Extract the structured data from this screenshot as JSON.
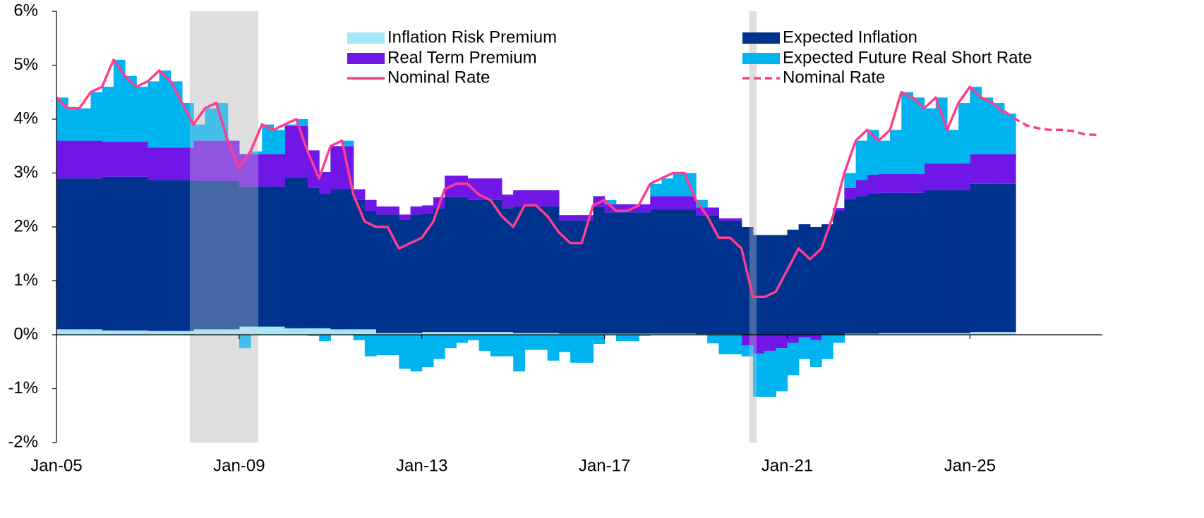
{
  "chart_data": {
    "type": "stacked-area",
    "x": [
      2005,
      2005.25,
      2005.5,
      2005.75,
      2006,
      2006.25,
      2006.5,
      2006.75,
      2007,
      2007.25,
      2007.5,
      2007.75,
      2008,
      2008.25,
      2008.5,
      2008.75,
      2009,
      2009.25,
      2009.5,
      2009.75,
      2010,
      2010.25,
      2010.5,
      2010.75,
      2011,
      2011.25,
      2011.5,
      2011.75,
      2012,
      2012.25,
      2012.5,
      2012.75,
      2013,
      2013.25,
      2013.5,
      2013.75,
      2014,
      2014.25,
      2014.5,
      2014.75,
      2015,
      2015.25,
      2015.5,
      2015.75,
      2016,
      2016.25,
      2016.5,
      2016.75,
      2017,
      2017.25,
      2017.5,
      2017.75,
      2018,
      2018.25,
      2018.5,
      2018.75,
      2019,
      2019.25,
      2019.5,
      2019.75,
      2020,
      2020.25,
      2020.5,
      2020.75,
      2021,
      2021.25,
      2021.5,
      2021.75,
      2022,
      2022.25,
      2022.5,
      2022.75,
      2023,
      2023.25,
      2023.5,
      2023.75,
      2024,
      2024.25,
      2024.5,
      2024.75,
      2025,
      2025.25,
      2025.5,
      2025.75
    ],
    "series": [
      {
        "name": "Inflation Risk Premium",
        "color": "#a8e6f7",
        "kind": "area",
        "values": [
          0.1,
          0.1,
          0.1,
          0.1,
          0.08,
          0.08,
          0.08,
          0.08,
          0.07,
          0.07,
          0.07,
          0.07,
          0.1,
          0.1,
          0.1,
          0.1,
          0.15,
          0.15,
          0.15,
          0.15,
          0.12,
          0.12,
          0.12,
          0.12,
          0.1,
          0.1,
          0.1,
          0.1,
          0.03,
          0.03,
          0.03,
          0.03,
          0.05,
          0.05,
          0.05,
          0.05,
          0.05,
          0.05,
          0.05,
          0.05,
          0.03,
          0.03,
          0.03,
          0.03,
          0.02,
          0.02,
          0.02,
          0.02,
          0.02,
          0.02,
          0.02,
          0.02,
          0.02,
          0.02,
          0.02,
          0.02,
          0.01,
          0.01,
          0.01,
          0.01,
          0,
          0,
          0,
          0,
          0,
          0,
          0,
          0,
          0,
          0.02,
          0.02,
          0.02,
          0.03,
          0.03,
          0.03,
          0.03,
          0.03,
          0.03,
          0.03,
          0.03,
          0.05,
          0.05,
          0.05,
          0.05
        ]
      },
      {
        "name": "Expected Inflation",
        "color": "#00338d",
        "kind": "area",
        "values": [
          2.8,
          2.8,
          2.8,
          2.8,
          2.85,
          2.85,
          2.85,
          2.85,
          2.8,
          2.8,
          2.8,
          2.8,
          2.75,
          2.75,
          2.75,
          2.75,
          2.6,
          2.6,
          2.6,
          2.6,
          2.8,
          2.8,
          2.6,
          2.5,
          2.6,
          2.6,
          2.4,
          2.2,
          2.2,
          2.2,
          2.1,
          2.2,
          2.2,
          2.3,
          2.5,
          2.5,
          2.45,
          2.45,
          2.45,
          2.3,
          2.35,
          2.35,
          2.35,
          2.35,
          2.1,
          2.1,
          2.1,
          2.35,
          2.25,
          2.25,
          2.25,
          2.25,
          2.3,
          2.3,
          2.3,
          2.3,
          2.2,
          2.2,
          2.1,
          2.1,
          2.0,
          1.85,
          1.85,
          1.85,
          1.95,
          2.05,
          2.0,
          2.05,
          2.3,
          2.5,
          2.55,
          2.6,
          2.6,
          2.6,
          2.6,
          2.6,
          2.65,
          2.65,
          2.65,
          2.65,
          2.75,
          2.75,
          2.75,
          2.75
        ]
      },
      {
        "name": "Real Term Premium",
        "color": "#7017e8",
        "kind": "area",
        "values": [
          0.7,
          0.7,
          0.7,
          0.7,
          0.65,
          0.65,
          0.65,
          0.65,
          0.6,
          0.6,
          0.6,
          0.6,
          0.75,
          0.75,
          0.75,
          0.75,
          0.6,
          0.6,
          0.6,
          0.6,
          0.95,
          0.95,
          0.7,
          0.4,
          0.8,
          0.8,
          0.2,
          0.2,
          0.15,
          0.15,
          0.1,
          0.15,
          0.15,
          0.2,
          0.4,
          0.4,
          0.4,
          0.4,
          0.4,
          0.25,
          0.3,
          0.3,
          0.3,
          0.3,
          0.1,
          0.1,
          0.1,
          0.2,
          0.15,
          0.15,
          0.15,
          0.15,
          0.25,
          0.25,
          0.25,
          0.25,
          0.15,
          0.15,
          0.05,
          0.05,
          -0.2,
          -0.35,
          -0.3,
          -0.25,
          -0.15,
          -0.05,
          -0.1,
          0,
          0.05,
          0.2,
          0.3,
          0.35,
          0.35,
          0.35,
          0.35,
          0.35,
          0.5,
          0.5,
          0.5,
          0.5,
          0.55,
          0.55,
          0.55,
          0.55
        ]
      },
      {
        "name": "Expected Future Real Short Rate",
        "color": "#00b4f0",
        "kind": "area",
        "values": [
          0.8,
          0.6,
          0.6,
          0.9,
          1.02,
          1.52,
          1.22,
          1.02,
          1.23,
          1.43,
          1.23,
          0.83,
          0.3,
          0.6,
          0.7,
          0.0,
          -0.25,
          0.05,
          0.55,
          0.45,
          0.03,
          0.13,
          -0.02,
          -0.12,
          0,
          0.1,
          -0.1,
          -0.4,
          -0.38,
          -0.38,
          -0.63,
          -0.68,
          -0.6,
          -0.45,
          -0.25,
          -0.15,
          -0.1,
          -0.3,
          -0.4,
          -0.4,
          -0.68,
          -0.28,
          -0.28,
          -0.48,
          -0.32,
          -0.52,
          -0.52,
          -0.17,
          0.08,
          -0.12,
          -0.12,
          -0.02,
          0.23,
          0.33,
          0.43,
          0.43,
          0.14,
          -0.16,
          -0.36,
          -0.36,
          -0.2,
          -0.8,
          -0.85,
          -0.8,
          -0.6,
          -0.4,
          -0.5,
          -0.45,
          -0.15,
          0.28,
          0.73,
          0.83,
          0.62,
          0.82,
          1.52,
          1.42,
          1.02,
          1.22,
          0.62,
          1.12,
          1.25,
          1.05,
          0.95,
          0.75
        ]
      },
      {
        "name": "Nominal Rate",
        "color": "#ff3d8e",
        "kind": "line",
        "values": [
          4.4,
          4.2,
          4.2,
          4.5,
          4.6,
          5.1,
          4.8,
          4.6,
          4.7,
          4.9,
          4.7,
          4.3,
          3.9,
          4.2,
          4.3,
          3.6,
          3.1,
          3.4,
          3.9,
          3.8,
          3.9,
          4.0,
          3.4,
          2.9,
          3.5,
          3.6,
          2.6,
          2.1,
          2.0,
          2.0,
          1.6,
          1.7,
          1.8,
          2.1,
          2.7,
          2.8,
          2.8,
          2.6,
          2.5,
          2.2,
          2.0,
          2.4,
          2.4,
          2.2,
          1.9,
          1.7,
          1.7,
          2.4,
          2.5,
          2.3,
          2.3,
          2.4,
          2.8,
          2.9,
          3.0,
          3.0,
          2.5,
          2.2,
          1.8,
          1.8,
          1.6,
          0.7,
          0.7,
          0.8,
          1.2,
          1.6,
          1.4,
          1.6,
          2.2,
          3.0,
          3.6,
          3.8,
          3.6,
          3.8,
          4.5,
          4.4,
          4.2,
          4.4,
          3.8,
          4.3,
          4.6,
          4.4,
          4.3,
          4.1
        ]
      },
      {
        "name": "Nominal Rate",
        "color": "#ff3d8e",
        "kind": "line",
        "dashed": true,
        "x": [
          2025.75,
          2026,
          2026.25,
          2026.5,
          2026.75,
          2027,
          2027.25,
          2027.5,
          2027.85
        ],
        "values": [
          4.15,
          4.0,
          3.88,
          3.83,
          3.8,
          3.8,
          3.78,
          3.72,
          3.7
        ]
      }
    ],
    "shaded_periods": [
      {
        "start": 2007.92,
        "end": 2009.42
      },
      {
        "start": 2020.17,
        "end": 2020.33
      }
    ],
    "xlim": [
      2005,
      2027.9
    ],
    "xticks": [
      {
        "value": 2005,
        "label": "Jan-05"
      },
      {
        "value": 2009,
        "label": "Jan-09"
      },
      {
        "value": 2013,
        "label": "Jan-13"
      },
      {
        "value": 2017,
        "label": "Jan-17"
      },
      {
        "value": 2021,
        "label": "Jan-21"
      },
      {
        "value": 2025,
        "label": "Jan-25"
      }
    ],
    "ylim": [
      -2,
      6
    ],
    "yticks": [
      {
        "value": -2,
        "label": "-2%"
      },
      {
        "value": -1,
        "label": "-1%"
      },
      {
        "value": 0,
        "label": "0%"
      },
      {
        "value": 1,
        "label": "1%"
      },
      {
        "value": 2,
        "label": "2%"
      },
      {
        "value": 3,
        "label": "3%"
      },
      {
        "value": 4,
        "label": "4%"
      },
      {
        "value": 5,
        "label": "5%"
      },
      {
        "value": 6,
        "label": "6%"
      }
    ]
  }
}
